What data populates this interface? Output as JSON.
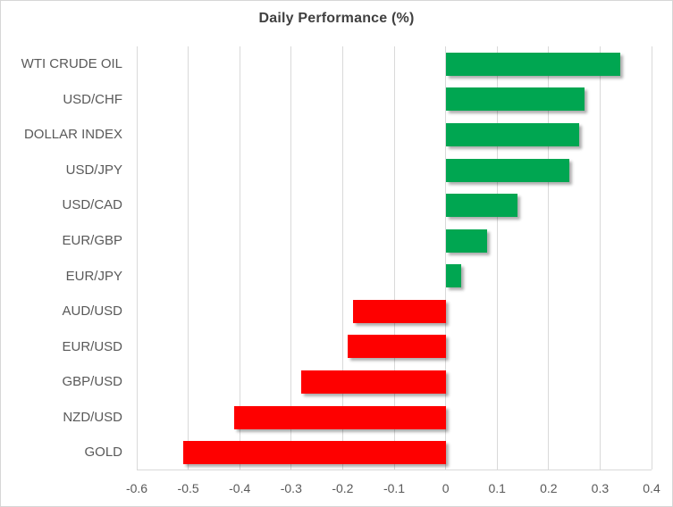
{
  "chart_data": {
    "type": "bar",
    "orientation": "horizontal",
    "title": "Daily Performance (%)",
    "categories": [
      "WTI CRUDE OIL",
      "USD/CHF",
      "DOLLAR INDEX",
      "USD/JPY",
      "USD/CAD",
      "EUR/GBP",
      "EUR/JPY",
      "AUD/USD",
      "EUR/USD",
      "GBP/USD",
      "NZD/USD",
      "GOLD"
    ],
    "values": [
      0.34,
      0.27,
      0.26,
      0.24,
      0.14,
      0.08,
      0.03,
      -0.18,
      -0.19,
      -0.28,
      -0.41,
      -0.51
    ],
    "xlim": [
      -0.6,
      0.4
    ],
    "x_ticks": [
      -0.6,
      -0.5,
      -0.4,
      -0.3,
      -0.2,
      -0.1,
      0,
      0.1,
      0.2,
      0.3,
      0.4
    ],
    "x_tick_labels": [
      "-0.6",
      "-0.5",
      "-0.4",
      "-0.3",
      "-0.2",
      "-0.1",
      "0",
      "0.1",
      "0.2",
      "0.3",
      "0.4"
    ],
    "positive_color": "#00A651",
    "negative_color": "#FE0000",
    "grid": true,
    "gridline_color": "#D9D9D9",
    "legend": "none"
  }
}
